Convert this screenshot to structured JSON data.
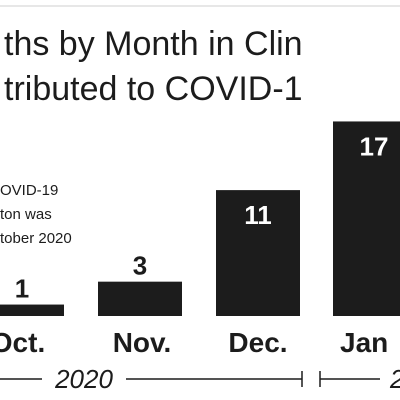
{
  "chart_data": {
    "type": "bar",
    "title_lines": [
      "ths by Month in Clin",
      "tributed  to COVID-1"
    ],
    "annotation_lines": [
      "OVID-19",
      "ton was",
      "tober 2020"
    ],
    "categories": [
      "Oct.",
      "Nov.",
      "Dec.",
      "Jan"
    ],
    "values": [
      1,
      3,
      11,
      17
    ],
    "data_labels": [
      "1",
      "3",
      "11",
      "17"
    ],
    "year_labels": [
      "2020",
      "2"
    ],
    "ylim": [
      0,
      18
    ],
    "colors": {
      "bar": "#1c1c1c",
      "text": "#1c1c1c",
      "label_outside": "#1c1c1c",
      "label_inside": "#ffffff",
      "background": "#ffffff"
    }
  }
}
